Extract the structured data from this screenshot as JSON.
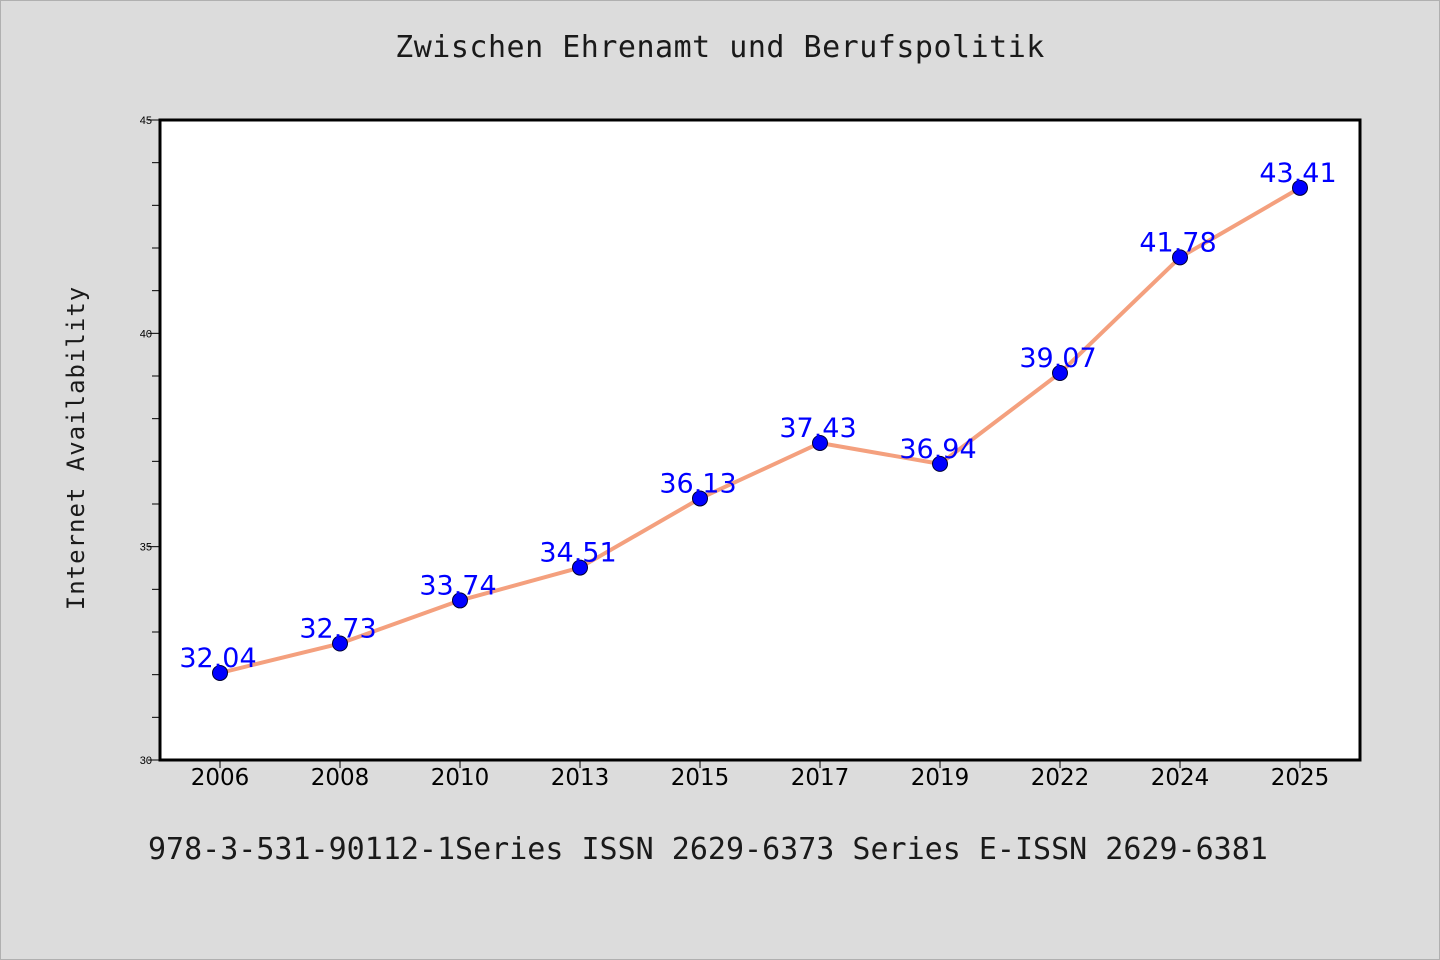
{
  "page": {
    "background": "#dcdcdc",
    "footer_text": "978-3-531-90112-1Series ISSN 2629-6373 Series E-ISSN 2629-6381"
  },
  "chart_data": {
    "type": "line",
    "title": "Zwischen Ehrenamt und Berufspolitik",
    "xlabel": "",
    "ylabel": "Internet Availability",
    "categories": [
      "2006",
      "2008",
      "2010",
      "2013",
      "2015",
      "2017",
      "2019",
      "2022",
      "2024",
      "2025"
    ],
    "series": [
      {
        "values": [
          32.04,
          32.73,
          33.74,
          34.51,
          36.13,
          37.43,
          36.94,
          39.07,
          41.78,
          43.41
        ],
        "line_color": "#f4a07e",
        "marker_color": "#0000ff"
      }
    ],
    "data_labels": [
      "32.04",
      "32.73",
      "33.74",
      "34.51",
      "36.13",
      "37.43",
      "36.94",
      "39.07",
      "41.78",
      "43.41"
    ],
    "data_label_color": "#0000ff",
    "ylim": [
      30,
      45
    ],
    "y_ticks": [
      30,
      35,
      40,
      45
    ],
    "y_minor_step": 1,
    "grid": false,
    "legend": "none"
  }
}
